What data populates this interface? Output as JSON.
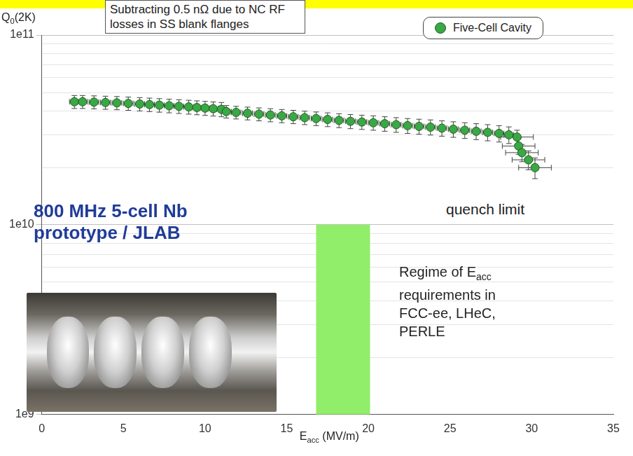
{
  "chart_data": {
    "type": "scatter",
    "title": "Subtracting 0.5 nΩ due to NC RF losses in SS blank flanges",
    "x_label": "Eacc (MV/m)",
    "y_label": "Q0(2K)",
    "xlim": [
      0,
      35
    ],
    "xticks": [
      0,
      5,
      10,
      15,
      20,
      25,
      30,
      35
    ],
    "ylim": [
      1000000000.0,
      100000000000.0
    ],
    "yticks": [
      {
        "value": 1000000000.0,
        "label": "1e9"
      },
      {
        "value": 10000000000.0,
        "label": "1e10"
      },
      {
        "value": 100000000000.0,
        "label": "1e11"
      }
    ],
    "log": "y",
    "grid": "y",
    "legend": "upper right",
    "series": [
      {
        "name": "Five-Cell Cavity",
        "color": "#3aa845",
        "marker": "circle",
        "x": [
          2.0,
          2.5,
          3.2,
          3.9,
          4.6,
          5.3,
          6.0,
          6.6,
          7.2,
          7.8,
          8.4,
          9.0,
          9.5,
          10.0,
          10.5,
          11.0,
          11.3,
          11.9,
          12.6,
          13.3,
          14.0,
          14.7,
          15.4,
          16.1,
          16.8,
          17.5,
          18.2,
          18.9,
          19.6,
          20.3,
          21.0,
          21.7,
          22.4,
          23.1,
          23.8,
          24.5,
          25.2,
          25.9,
          26.6,
          27.3,
          28.0,
          28.6,
          29.1,
          29.2,
          29.4,
          29.8,
          30.2
        ],
        "values": [
          44500000000.0,
          44500000000.0,
          44300000000.0,
          44100000000.0,
          43900000000.0,
          43600000000.0,
          43300000000.0,
          43000000000.0,
          42700000000.0,
          42400000000.0,
          42100000000.0,
          41800000000.0,
          41500000000.0,
          41200000000.0,
          40900000000.0,
          40600000000.0,
          39500000000.0,
          39100000000.0,
          38700000000.0,
          38300000000.0,
          37900000000.0,
          37500000000.0,
          37100000000.0,
          36700000000.0,
          36300000000.0,
          35900000000.0,
          35500000000.0,
          35100000000.0,
          34800000000.0,
          34500000000.0,
          34100000000.0,
          33700000000.0,
          33300000000.0,
          33000000000.0,
          32700000000.0,
          32300000000.0,
          31900000000.0,
          31500000000.0,
          31100000000.0,
          30700000000.0,
          30300000000.0,
          29800000000.0,
          29000000000.0,
          26000000000.0,
          24000000000.0,
          22000000000.0,
          20000000000.0
        ],
        "xerr": [
          0.3,
          0.3,
          0.3,
          0.3,
          0.3,
          0.3,
          0.3,
          0.3,
          0.3,
          0.3,
          0.3,
          0.3,
          0.3,
          0.3,
          0.3,
          0.3,
          0.3,
          0.3,
          0.3,
          0.3,
          0.3,
          0.3,
          0.3,
          0.3,
          0.3,
          0.3,
          0.3,
          0.3,
          0.3,
          0.3,
          0.3,
          0.3,
          0.3,
          0.3,
          0.3,
          0.3,
          0.3,
          0.3,
          0.3,
          0.3,
          0.3,
          0.3,
          1.0,
          1.0,
          1.0,
          1.0,
          1.0
        ],
        "yerr": [
          3500000000.0,
          3500000000.0,
          3500000000.0,
          3500000000.0,
          3500000000.0,
          3500000000.0,
          3500000000.0,
          3500000000.0,
          3500000000.0,
          3500000000.0,
          3500000000.0,
          3500000000.0,
          3500000000.0,
          3500000000.0,
          3500000000.0,
          3500000000.0,
          3000000000.0,
          3000000000.0,
          3000000000.0,
          3000000000.0,
          3000000000.0,
          3000000000.0,
          3000000000.0,
          3000000000.0,
          3000000000.0,
          3000000000.0,
          3000000000.0,
          3000000000.0,
          3000000000.0,
          3000000000.0,
          3000000000.0,
          3000000000.0,
          3000000000.0,
          3000000000.0,
          3000000000.0,
          3000000000.0,
          3000000000.0,
          3000000000.0,
          3000000000.0,
          3000000000.0,
          3000000000.0,
          3000000000.0,
          2500000000.0,
          2500000000.0,
          2500000000.0,
          2500000000.0,
          2500000000.0
        ]
      }
    ],
    "band": {
      "xmin": 16.8,
      "xmax": 20.1,
      "ymin": 1000000000.0,
      "ymax": 10000000000.0,
      "color": "#90ee6a"
    },
    "annotations": [
      {
        "text": "800 MHz 5-cell Nb prototype / JLAB",
        "color": "#1f3c98"
      },
      {
        "text": "quench limit",
        "color": "#222222"
      },
      {
        "text": "Regime of Eacc requirements in FCC-ee, LHeC, PERLE",
        "color": "#222222"
      }
    ]
  }
}
